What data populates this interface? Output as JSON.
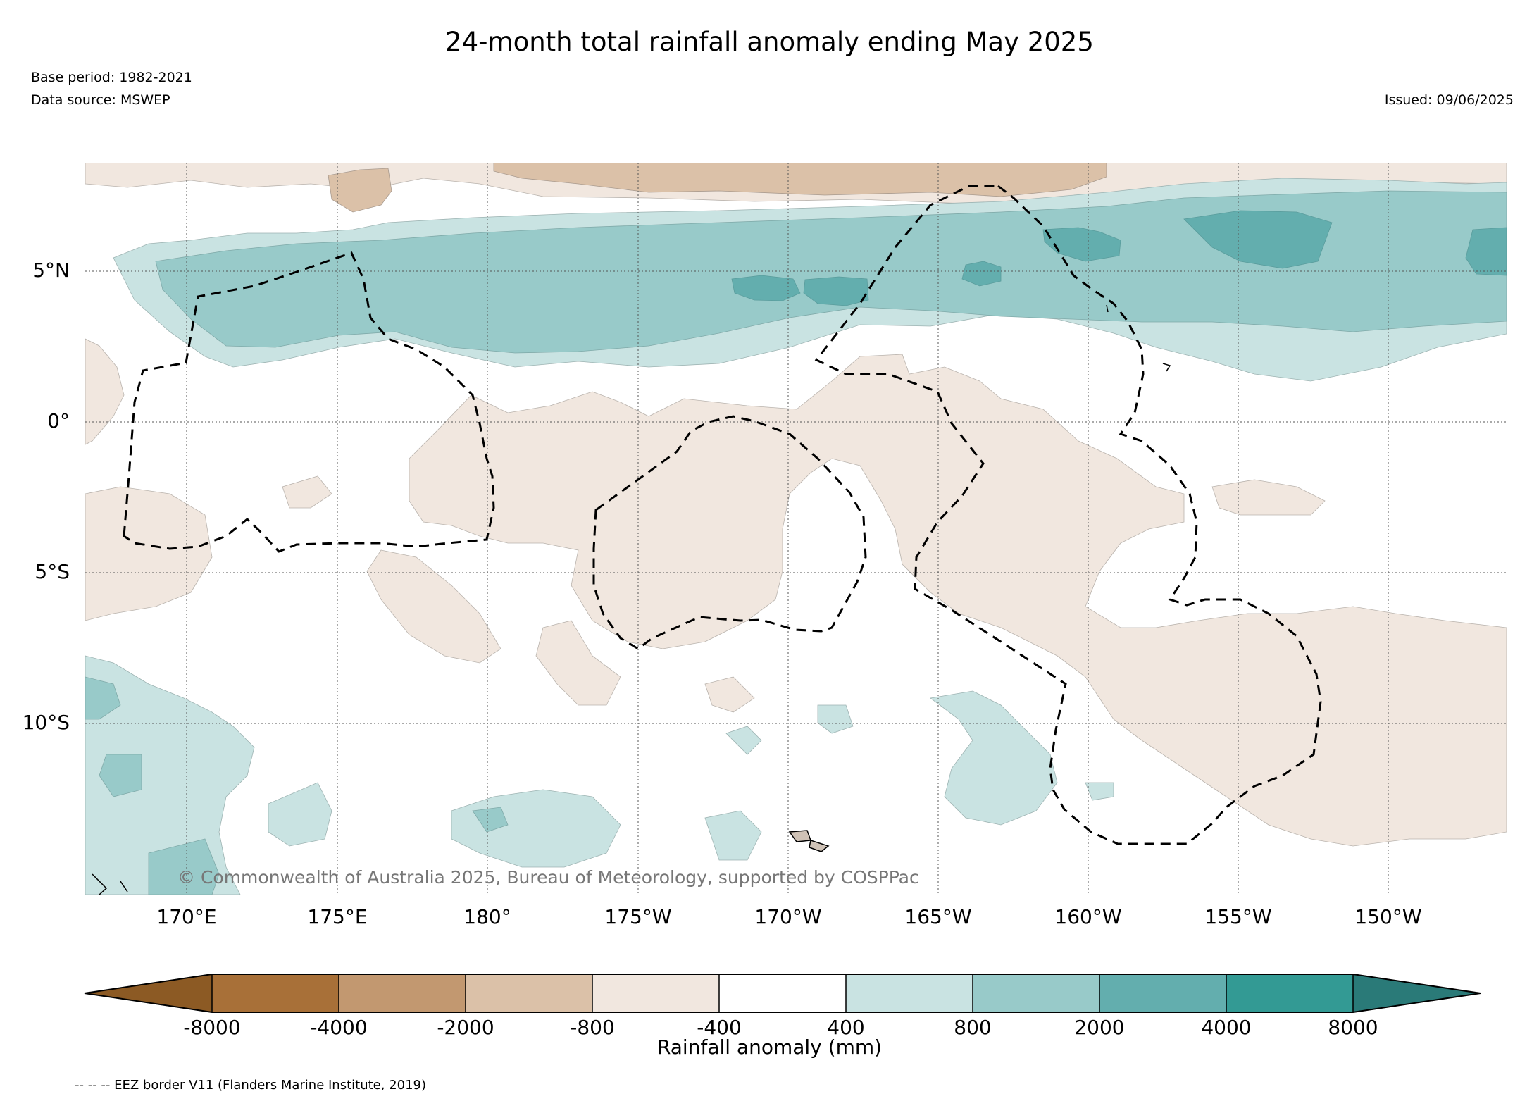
{
  "title": "24-month total rainfall anomaly ending May 2025",
  "base_period": "Base period: 1982-2021",
  "data_source": "Data source: MSWEP",
  "issued": "Issued: 09/06/2025",
  "copyright": "© Commonwealth of Australia 2025, Bureau of Meteorology, supported by COSPPac",
  "map": {
    "lat_labels": [
      "5°N",
      "0°",
      "5°S",
      "10°S"
    ],
    "lon_labels": [
      "170°E",
      "175°E",
      "180°",
      "175°W",
      "170°W",
      "165°W",
      "160°W",
      "155°W",
      "150°W"
    ]
  },
  "colorbar": {
    "title": "Rainfall anomaly (mm)",
    "tick_labels": [
      "-8000",
      "-4000",
      "-2000",
      "-800",
      "-400",
      "400",
      "800",
      "2000",
      "4000",
      "8000"
    ],
    "colors": {
      "lt_-8000": "#8c5a24",
      "-8000_-4000": "#a87038",
      "-4000_-2000": "#c29870",
      "-2000_-800": "#dbc1a8",
      "-800_-400": "#f1e7df",
      "-400_400": "#ffffff",
      "400_800": "#c9e3e2",
      "800_2000": "#98cac9",
      "2000_4000": "#63aeae",
      "4000_8000": "#339a94",
      "gt_8000": "#2a7a78"
    }
  },
  "legend_note": "-- -- -- EEZ border V11 (Flanders Marine Institute, 2019)"
}
